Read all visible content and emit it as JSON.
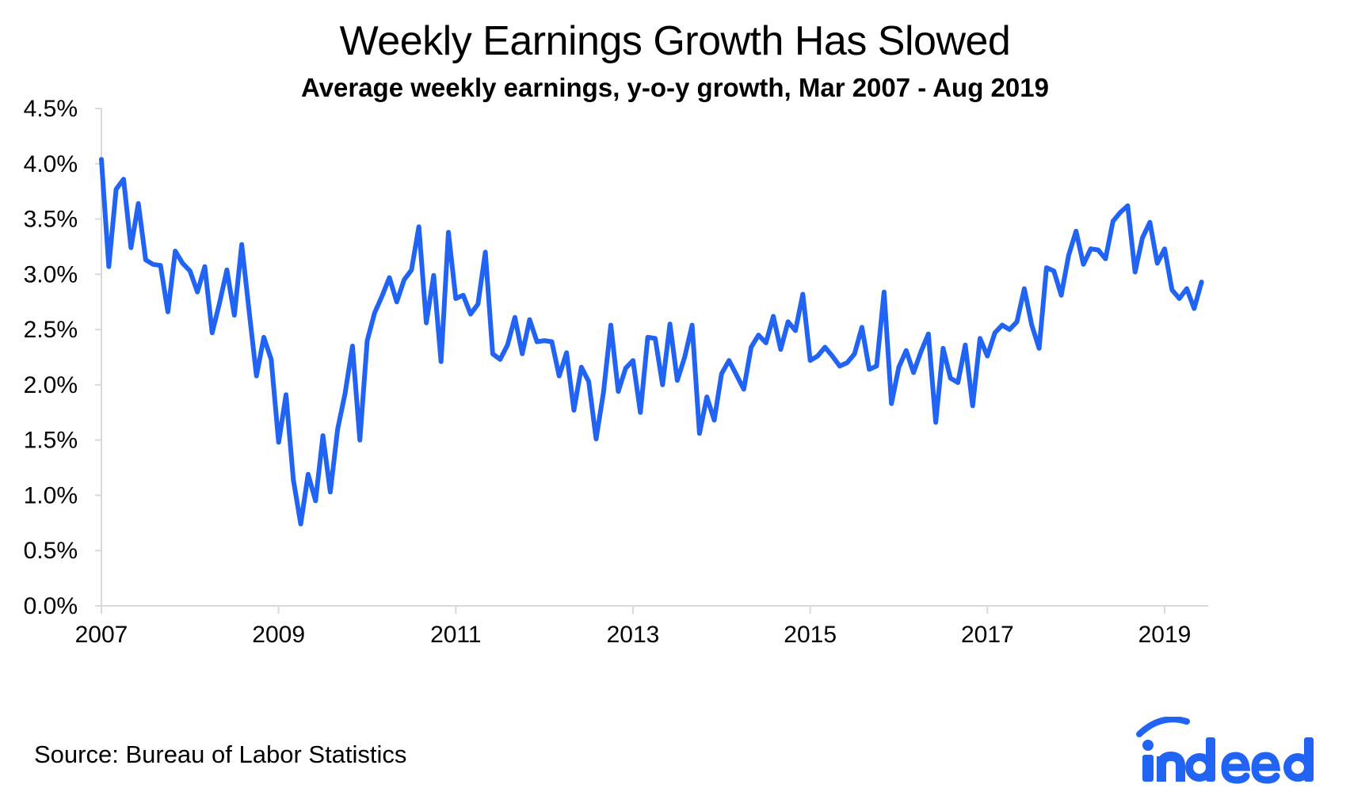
{
  "title": "Weekly Earnings Growth Has Slowed",
  "subtitle": "Average weekly earnings, y-o-y growth, Mar 2007 - Aug 2019",
  "source": "Source: Bureau of Labor Statistics",
  "logo_text": "indeed",
  "colors": {
    "line": "#2164f3",
    "axis": "#d9d9d9",
    "logo": "#2164f3"
  },
  "chart_data": {
    "type": "line",
    "title": "Weekly Earnings Growth Has Slowed",
    "subtitle": "Average weekly earnings, y-o-y growth, Mar 2007 - Aug 2019",
    "xlabel": "",
    "ylabel": "",
    "x_range": [
      "2007-01",
      "2019-08"
    ],
    "ylim": [
      0,
      4.5
    ],
    "y_ticks": [
      "0.0%",
      "0.5%",
      "1.0%",
      "1.5%",
      "2.0%",
      "2.5%",
      "3.0%",
      "3.5%",
      "4.0%",
      "4.5%"
    ],
    "x_ticks": [
      {
        "label": "2007",
        "x": "2007-01"
      },
      {
        "label": "2009",
        "x": "2009-01"
      },
      {
        "label": "2011",
        "x": "2011-01"
      },
      {
        "label": "2013",
        "x": "2013-01"
      },
      {
        "label": "2015",
        "x": "2015-01"
      },
      {
        "label": "2017",
        "x": "2017-01"
      },
      {
        "label": "2019",
        "x": "2019-01"
      }
    ],
    "grid": false,
    "legend": "none",
    "series": [
      {
        "points": [
          [
            "2007-01",
            4.04
          ],
          [
            "2007-02",
            3.07
          ],
          [
            "2007-03",
            3.77
          ],
          [
            "2007-04",
            3.86
          ],
          [
            "2007-05",
            3.24
          ],
          [
            "2007-06",
            3.64
          ],
          [
            "2007-07",
            3.13
          ],
          [
            "2007-08",
            3.09
          ],
          [
            "2007-09",
            3.08
          ],
          [
            "2007-10",
            2.66
          ],
          [
            "2007-11",
            3.21
          ],
          [
            "2007-12",
            3.1
          ],
          [
            "2008-01",
            3.03
          ],
          [
            "2008-02",
            2.84
          ],
          [
            "2008-03",
            3.07
          ],
          [
            "2008-04",
            2.47
          ],
          [
            "2008-05",
            2.74
          ],
          [
            "2008-06",
            3.04
          ],
          [
            "2008-07",
            2.63
          ],
          [
            "2008-08",
            3.27
          ],
          [
            "2008-09",
            2.67
          ],
          [
            "2008-10",
            2.08
          ],
          [
            "2008-11",
            2.43
          ],
          [
            "2008-12",
            2.23
          ],
          [
            "2009-01",
            1.48
          ],
          [
            "2009-02",
            1.91
          ],
          [
            "2009-03",
            1.14
          ],
          [
            "2009-04",
            0.74
          ],
          [
            "2009-05",
            1.19
          ],
          [
            "2009-06",
            0.95
          ],
          [
            "2009-07",
            1.54
          ],
          [
            "2009-08",
            1.03
          ],
          [
            "2009-09",
            1.6
          ],
          [
            "2009-10",
            1.92
          ],
          [
            "2009-11",
            2.35
          ],
          [
            "2009-12",
            1.5
          ],
          [
            "2010-01",
            2.4
          ],
          [
            "2010-02",
            2.65
          ],
          [
            "2010-03",
            2.8
          ],
          [
            "2010-04",
            2.97
          ],
          [
            "2010-05",
            2.75
          ],
          [
            "2010-06",
            2.95
          ],
          [
            "2010-07",
            3.04
          ],
          [
            "2010-08",
            3.43
          ],
          [
            "2010-09",
            2.56
          ],
          [
            "2010-10",
            2.99
          ],
          [
            "2010-11",
            2.21
          ],
          [
            "2010-12",
            3.38
          ],
          [
            "2011-01",
            2.78
          ],
          [
            "2011-02",
            2.81
          ],
          [
            "2011-03",
            2.64
          ],
          [
            "2011-04",
            2.73
          ],
          [
            "2011-05",
            3.2
          ],
          [
            "2011-06",
            2.28
          ],
          [
            "2011-07",
            2.23
          ],
          [
            "2011-08",
            2.36
          ],
          [
            "2011-09",
            2.61
          ],
          [
            "2011-10",
            2.28
          ],
          [
            "2011-11",
            2.59
          ],
          [
            "2011-12",
            2.39
          ],
          [
            "2012-01",
            2.4
          ],
          [
            "2012-02",
            2.39
          ],
          [
            "2012-03",
            2.08
          ],
          [
            "2012-04",
            2.29
          ],
          [
            "2012-05",
            1.77
          ],
          [
            "2012-06",
            2.16
          ],
          [
            "2012-07",
            2.03
          ],
          [
            "2012-08",
            1.51
          ],
          [
            "2012-09",
            1.93
          ],
          [
            "2012-10",
            2.54
          ],
          [
            "2012-11",
            1.94
          ],
          [
            "2012-12",
            2.15
          ],
          [
            "2013-01",
            2.22
          ],
          [
            "2013-02",
            1.75
          ],
          [
            "2013-03",
            2.43
          ],
          [
            "2013-04",
            2.42
          ],
          [
            "2013-05",
            2.0
          ],
          [
            "2013-06",
            2.55
          ],
          [
            "2013-07",
            2.04
          ],
          [
            "2013-08",
            2.25
          ],
          [
            "2013-09",
            2.54
          ],
          [
            "2013-10",
            1.56
          ],
          [
            "2013-11",
            1.89
          ],
          [
            "2013-12",
            1.68
          ],
          [
            "2014-01",
            2.1
          ],
          [
            "2014-02",
            2.22
          ],
          [
            "2014-03",
            2.09
          ],
          [
            "2014-04",
            1.96
          ],
          [
            "2014-05",
            2.34
          ],
          [
            "2014-06",
            2.45
          ],
          [
            "2014-07",
            2.38
          ],
          [
            "2014-08",
            2.62
          ],
          [
            "2014-09",
            2.32
          ],
          [
            "2014-10",
            2.57
          ],
          [
            "2014-11",
            2.49
          ],
          [
            "2014-12",
            2.82
          ],
          [
            "2015-01",
            2.22
          ],
          [
            "2015-02",
            2.26
          ],
          [
            "2015-03",
            2.34
          ],
          [
            "2015-04",
            2.26
          ],
          [
            "2015-05",
            2.17
          ],
          [
            "2015-06",
            2.2
          ],
          [
            "2015-07",
            2.28
          ],
          [
            "2015-08",
            2.52
          ],
          [
            "2015-09",
            2.14
          ],
          [
            "2015-10",
            2.17
          ],
          [
            "2015-11",
            2.84
          ],
          [
            "2015-12",
            1.83
          ],
          [
            "2016-01",
            2.16
          ],
          [
            "2016-02",
            2.31
          ],
          [
            "2016-03",
            2.11
          ],
          [
            "2016-04",
            2.3
          ],
          [
            "2016-05",
            2.46
          ],
          [
            "2016-06",
            1.66
          ],
          [
            "2016-07",
            2.33
          ],
          [
            "2016-08",
            2.06
          ],
          [
            "2016-09",
            2.02
          ],
          [
            "2016-10",
            2.36
          ],
          [
            "2016-11",
            1.81
          ],
          [
            "2016-12",
            2.42
          ],
          [
            "2017-01",
            2.26
          ],
          [
            "2017-02",
            2.47
          ],
          [
            "2017-03",
            2.54
          ],
          [
            "2017-04",
            2.5
          ],
          [
            "2017-05",
            2.57
          ],
          [
            "2017-06",
            2.87
          ],
          [
            "2017-07",
            2.54
          ],
          [
            "2017-08",
            2.33
          ],
          [
            "2017-09",
            3.06
          ],
          [
            "2017-10",
            3.03
          ],
          [
            "2017-11",
            2.81
          ],
          [
            "2017-12",
            3.17
          ],
          [
            "2018-01",
            3.39
          ],
          [
            "2018-02",
            3.09
          ],
          [
            "2018-03",
            3.23
          ],
          [
            "2018-04",
            3.22
          ],
          [
            "2018-05",
            3.14
          ],
          [
            "2018-06",
            3.48
          ],
          [
            "2018-07",
            3.56
          ],
          [
            "2018-08",
            3.62
          ],
          [
            "2018-09",
            3.02
          ],
          [
            "2018-10",
            3.33
          ],
          [
            "2018-11",
            3.47
          ],
          [
            "2018-12",
            3.1
          ],
          [
            "2019-01",
            3.23
          ],
          [
            "2019-02",
            2.86
          ],
          [
            "2019-03",
            2.78
          ],
          [
            "2019-04",
            2.87
          ],
          [
            "2019-05",
            2.69
          ],
          [
            "2019-06",
            2.93
          ]
        ]
      }
    ]
  }
}
